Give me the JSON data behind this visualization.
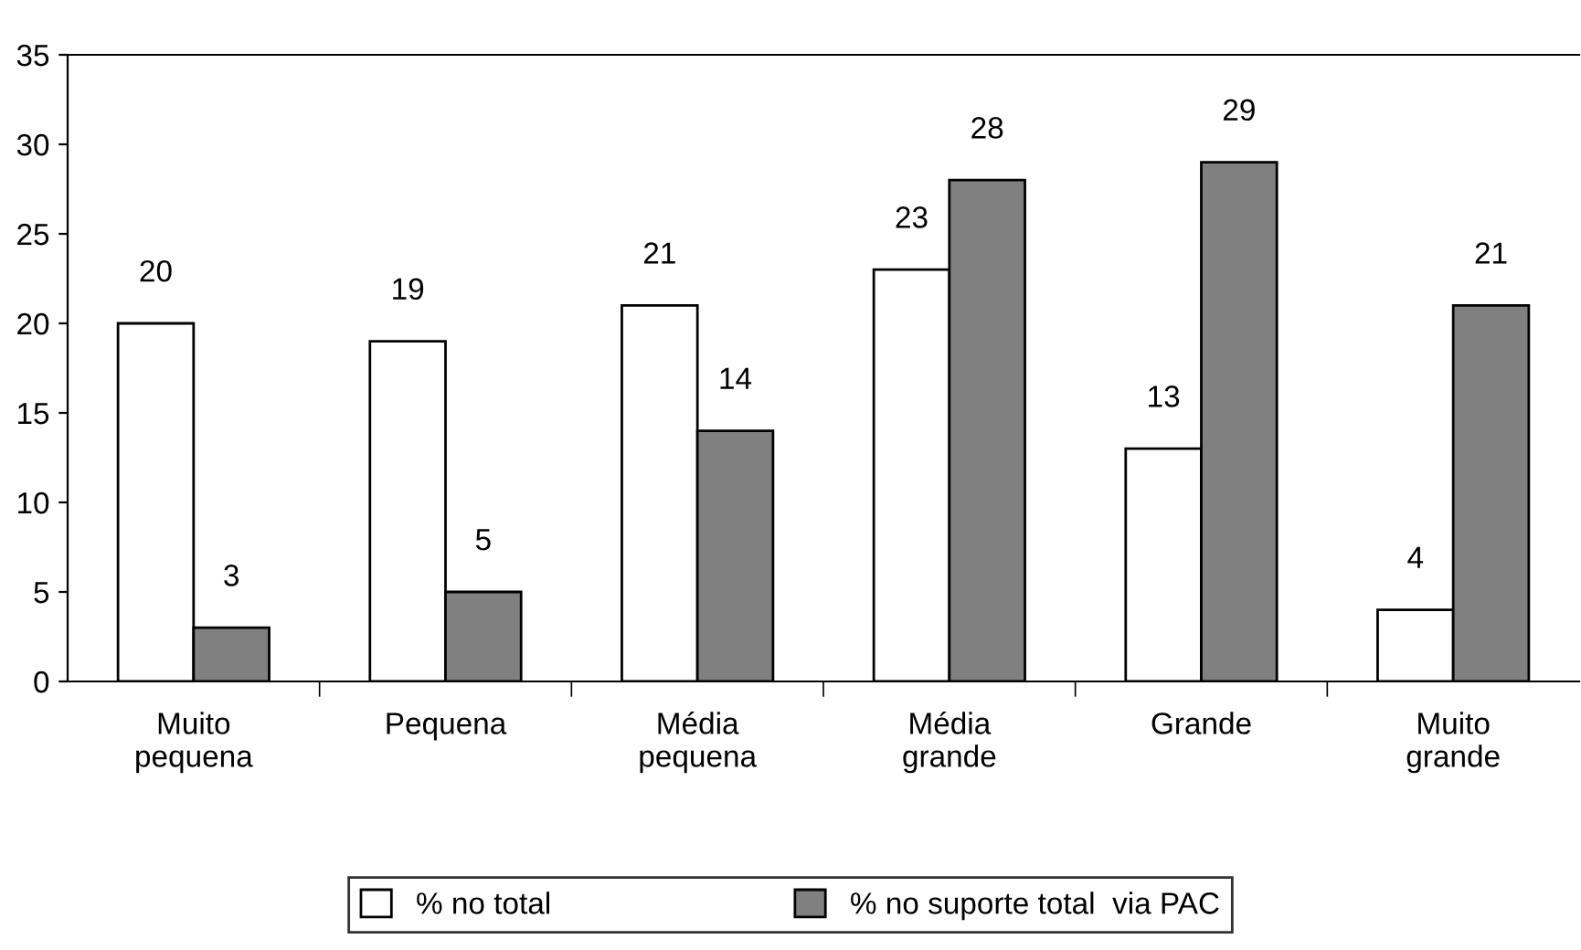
{
  "chart_data": {
    "type": "bar",
    "categories": [
      "Muito\npequena",
      "Pequena",
      "Média\npequena",
      "Média\ngrande",
      "Grande",
      "Muito\ngrande"
    ],
    "series": [
      {
        "name": "% no total",
        "color": "#ffffff",
        "values": [
          20,
          19,
          21,
          23,
          13,
          4
        ]
      },
      {
        "name": "% no suporte total  via PAC",
        "color": "#808080",
        "values": [
          3,
          5,
          14,
          28,
          29,
          21
        ]
      }
    ],
    "ylim": [
      0,
      35
    ],
    "yticks": [
      0,
      5,
      10,
      15,
      20,
      25,
      30,
      35
    ],
    "grid": false,
    "legend": "bottom",
    "data_labels": true
  }
}
